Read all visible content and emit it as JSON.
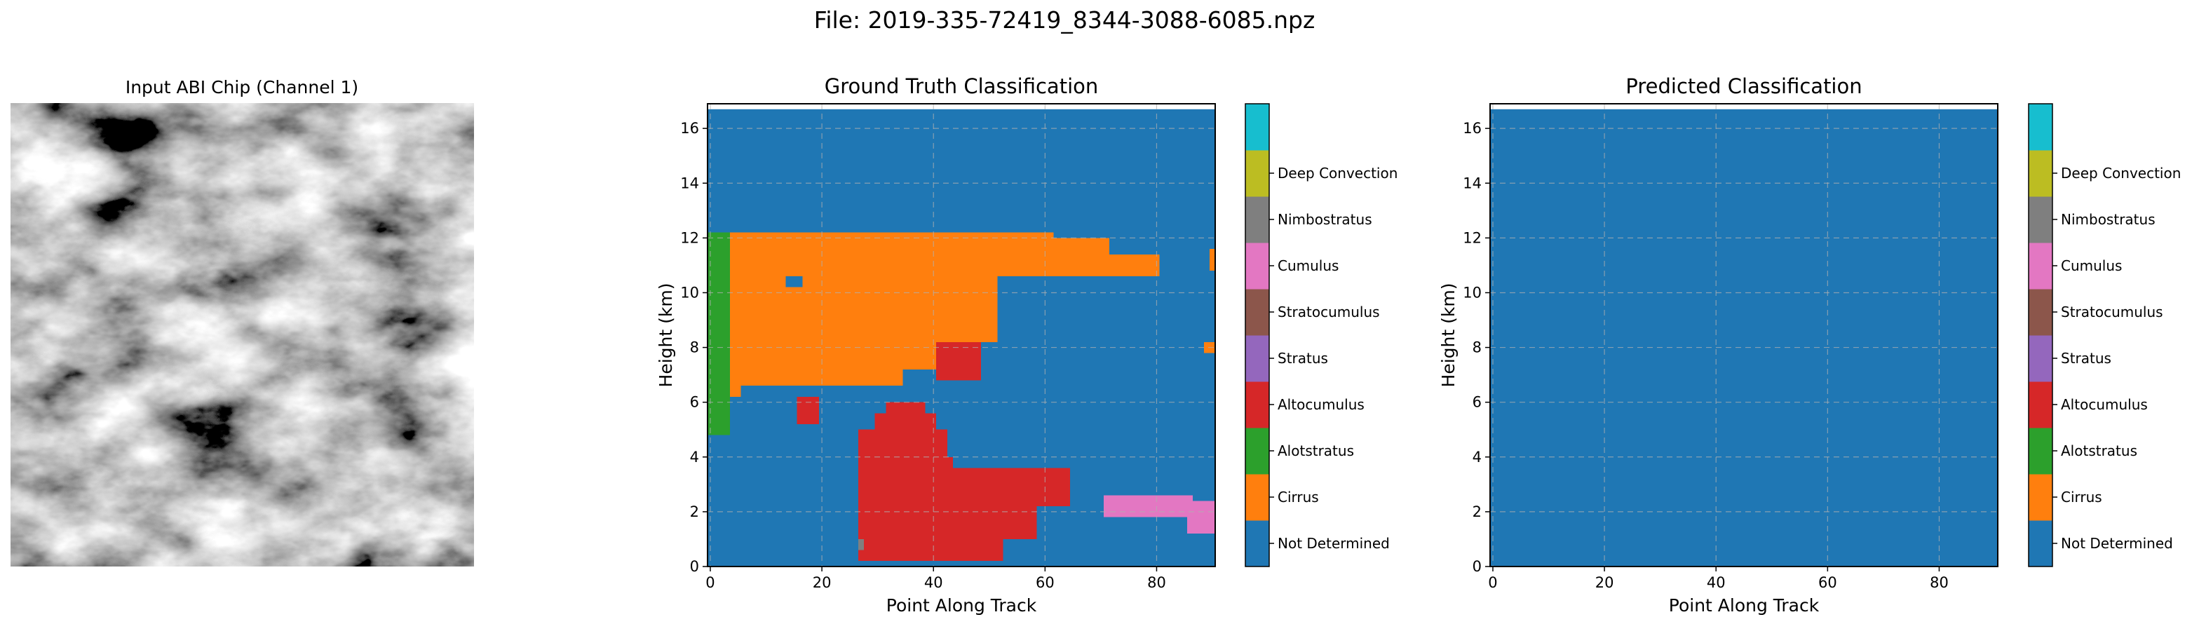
{
  "figure": {
    "suptitle": "File: 2019-335-72419_8344-3088-6085.npz"
  },
  "panels": {
    "input": {
      "title": "Input ABI Chip (Channel 1)"
    },
    "ground_truth": {
      "title": "Ground Truth Classification",
      "xlabel": "Point Along Track",
      "ylabel": "Height (km)"
    },
    "predicted": {
      "title": "Predicted Classification",
      "xlabel": "Point Along Track",
      "ylabel": "Height (km)"
    }
  },
  "colorbar": {
    "classes": [
      {
        "label": "Not Determined",
        "color": "#1f77b4"
      },
      {
        "label": "Cirrus",
        "color": "#ff7f0e"
      },
      {
        "label": "Alotstratus",
        "color": "#2ca02c"
      },
      {
        "label": "Altocumulus",
        "color": "#d62728"
      },
      {
        "label": "Stratus",
        "color": "#9467bd"
      },
      {
        "label": "Stratocumulus",
        "color": "#8c564b"
      },
      {
        "label": "Cumulus",
        "color": "#e377c2"
      },
      {
        "label": "Nimbostratus",
        "color": "#7f7f7f"
      },
      {
        "label": "Deep Convection",
        "color": "#bcbd22"
      },
      {
        "label": "",
        "color": "#17becf"
      }
    ],
    "ticklabels": [
      "Not Determined",
      "Cirrus",
      "Alotstratus",
      "Altocumulus",
      "Stratus",
      "Stratocumulus",
      "Cumulus",
      "Nimbostratus",
      "Deep Convection"
    ]
  },
  "chart_data": [
    {
      "type": "heatmap",
      "title": "Ground Truth Classification",
      "xlabel": "Point Along Track",
      "ylabel": "Height (km)",
      "xlim": [
        -0.5,
        90.5
      ],
      "ylim": [
        0,
        16.9
      ],
      "data_top": 16.7,
      "xticks": [
        0,
        20,
        40,
        60,
        80
      ],
      "yticks": [
        0,
        2,
        4,
        6,
        8,
        10,
        12,
        14,
        16
      ],
      "grid": true,
      "background_class": "Not Determined",
      "regions": [
        {
          "class": "Alotstratus",
          "x": [
            0,
            3
          ],
          "y": [
            4.8,
            12.2
          ]
        },
        {
          "class": "Cirrus",
          "x": [
            4,
            61
          ],
          "y": [
            10.6,
            12.2
          ]
        },
        {
          "class": "Cirrus",
          "x": [
            62,
            71
          ],
          "y": [
            10.6,
            12.0
          ]
        },
        {
          "class": "Cirrus",
          "x": [
            72,
            80
          ],
          "y": [
            10.6,
            11.4
          ]
        },
        {
          "class": "Cirrus",
          "x": [
            4,
            51
          ],
          "y": [
            8.2,
            10.6
          ]
        },
        {
          "class": "Cirrus",
          "x": [
            4,
            40
          ],
          "y": [
            7.2,
            8.2
          ]
        },
        {
          "class": "Cirrus",
          "x": [
            6,
            34
          ],
          "y": [
            6.6,
            7.2
          ]
        },
        {
          "class": "Cirrus",
          "x": [
            4,
            5
          ],
          "y": [
            6.2,
            7.2
          ]
        },
        {
          "class": "Cirrus",
          "x": [
            90,
            90
          ],
          "y": [
            10.8,
            11.6
          ]
        },
        {
          "class": "Cirrus",
          "x": [
            89,
            90
          ],
          "y": [
            7.8,
            8.2
          ]
        },
        {
          "class": "Not Determined",
          "x": [
            14,
            16
          ],
          "y": [
            10.2,
            10.6
          ]
        },
        {
          "class": "Altocumulus",
          "x": [
            16,
            19
          ],
          "y": [
            5.2,
            6.2
          ]
        },
        {
          "class": "Altocumulus",
          "x": [
            41,
            48
          ],
          "y": [
            6.8,
            8.2
          ]
        },
        {
          "class": "Altocumulus",
          "x": [
            32,
            38
          ],
          "y": [
            5.6,
            6.0
          ]
        },
        {
          "class": "Altocumulus",
          "x": [
            30,
            40
          ],
          "y": [
            5.0,
            5.6
          ]
        },
        {
          "class": "Altocumulus",
          "x": [
            27,
            42
          ],
          "y": [
            4.0,
            5.0
          ]
        },
        {
          "class": "Altocumulus",
          "x": [
            27,
            43
          ],
          "y": [
            3.6,
            4.0
          ]
        },
        {
          "class": "Altocumulus",
          "x": [
            27,
            64
          ],
          "y": [
            2.2,
            3.6
          ]
        },
        {
          "class": "Altocumulus",
          "x": [
            27,
            58
          ],
          "y": [
            1.0,
            2.2
          ]
        },
        {
          "class": "Altocumulus",
          "x": [
            27,
            52
          ],
          "y": [
            0.2,
            1.0
          ]
        },
        {
          "class": "Nimbostratus",
          "x": [
            27,
            27
          ],
          "y": [
            0.6,
            1.0
          ]
        },
        {
          "class": "Cumulus",
          "x": [
            71,
            86
          ],
          "y": [
            1.8,
            2.6
          ]
        },
        {
          "class": "Cumulus",
          "x": [
            86,
            90
          ],
          "y": [
            1.2,
            2.4
          ]
        }
      ]
    },
    {
      "type": "heatmap",
      "title": "Predicted Classification",
      "xlabel": "Point Along Track",
      "ylabel": "Height (km)",
      "xlim": [
        -0.5,
        90.5
      ],
      "ylim": [
        0,
        16.9
      ],
      "data_top": 16.7,
      "xticks": [
        0,
        20,
        40,
        60,
        80
      ],
      "yticks": [
        0,
        2,
        4,
        6,
        8,
        10,
        12,
        14,
        16
      ],
      "grid": true,
      "background_class": "Not Determined",
      "regions": []
    }
  ]
}
